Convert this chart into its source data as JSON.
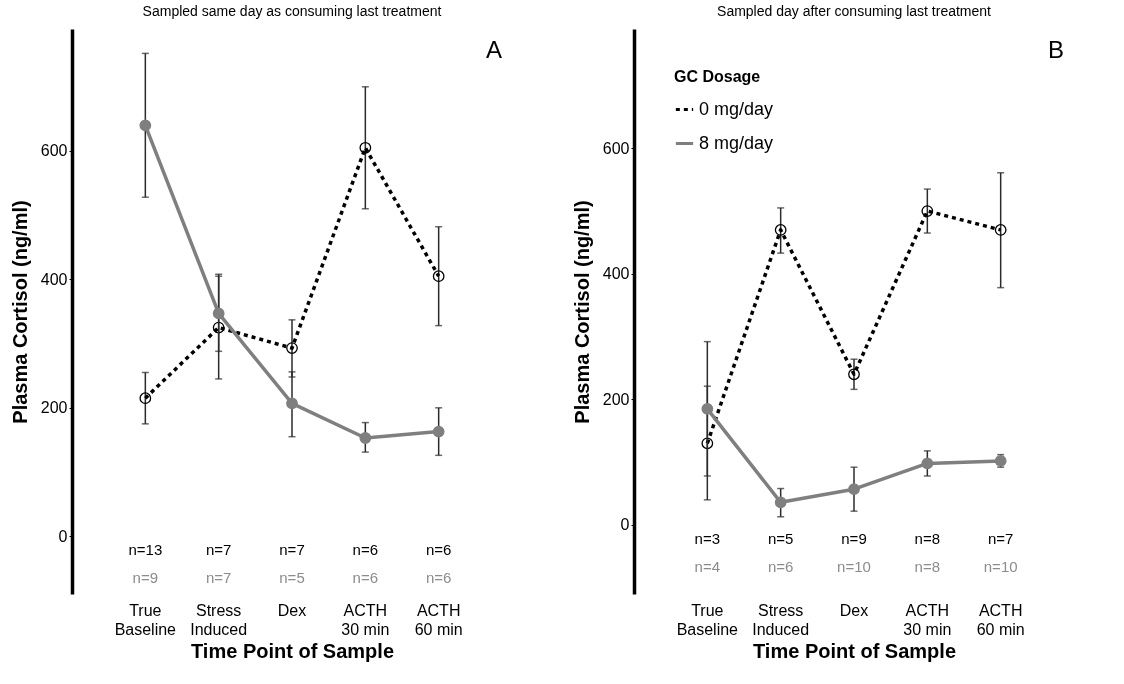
{
  "chart_data": [
    {
      "type": "line",
      "title": "Sampled same day as consuming last treatment",
      "xlabel": "Time Point of Sample",
      "ylabel": "Plasma Cortisol (ng/ml)",
      "categories": [
        "True\nBaseline",
        "Stress\nInduced",
        "Dex",
        "ACTH\n30 min",
        "ACTH\n60 min"
      ],
      "series": [
        {
          "color": "#000000",
          "line_style": "dotted",
          "marker": "circle",
          "values": [
            215,
            325,
            293,
            605,
            405
          ],
          "errors": [
            [
              175,
              255
            ],
            [
              245,
              408
            ],
            [
              248,
              337
            ],
            [
              510,
              700
            ],
            [
              328,
              482
            ]
          ]
        },
        {
          "color": "#7f7f7f",
          "line_style": "solid",
          "marker": "circle",
          "values": [
            640,
            347,
            207,
            153,
            163
          ],
          "errors": [
            [
              528,
              752
            ],
            [
              288,
              405
            ],
            [
              155,
              256
            ],
            [
              131,
              177
            ],
            [
              126,
              200
            ]
          ]
        }
      ],
      "ylim": [
        -90,
        790
      ],
      "yticks": [
        0,
        200,
        400,
        600
      ],
      "grid": false,
      "legend": false,
      "annotations": [
        "A",
        "n=13",
        "n=7",
        "n=7",
        "n=6",
        "n=6",
        "n=9",
        "n=7",
        "n=5",
        "n=6",
        "n=6"
      ]
    },
    {
      "type": "line",
      "title": "Sampled day after consuming last treatment",
      "xlabel": "Time Point of Sample",
      "ylabel": "Plasma Cortisol (ng/ml)",
      "legend_title": "GC Dosage",
      "categories": [
        "True\nBaseline",
        "Stress\nInduced",
        "Dex",
        "ACTH\n30 min",
        "ACTH\n60 min"
      ],
      "series": [
        {
          "name": "0 mg/day",
          "color": "#000000",
          "line_style": "dotted",
          "marker": "circle",
          "values": [
            130,
            470,
            240,
            500,
            470
          ],
          "errors": [
            [
              40,
              221
            ],
            [
              433,
              505
            ],
            [
              216,
              264
            ],
            [
              465,
              535
            ],
            [
              378,
              561
            ]
          ]
        },
        {
          "name": "8 mg/day",
          "color": "#7f7f7f",
          "line_style": "solid",
          "marker": "circle",
          "values": [
            185,
            36,
            57,
            98,
            102
          ],
          "errors": [
            [
              78,
              292
            ],
            [
              13,
              58
            ],
            [
              22,
              92
            ],
            [
              78,
              118
            ],
            [
              92,
              112
            ]
          ]
        }
      ],
      "ylim": [
        -110,
        790
      ],
      "yticks": [
        0,
        200,
        400,
        600
      ],
      "grid": false,
      "legend": "top left",
      "annotations": [
        "B",
        "n=3",
        "n=5",
        "n=9",
        "n=8",
        "n=7",
        "n=4",
        "n=6",
        "n=10",
        "n=8",
        "n=10"
      ]
    }
  ]
}
